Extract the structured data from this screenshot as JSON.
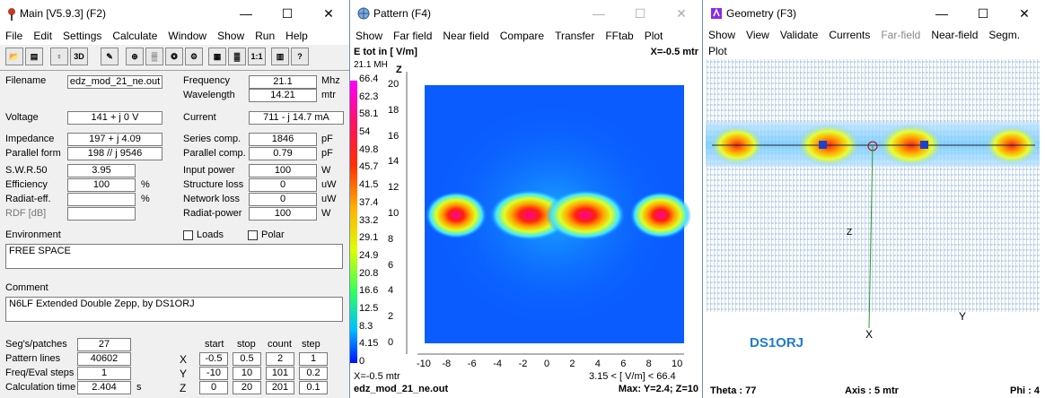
{
  "main": {
    "title": "Main [V5.9.3]   (F2)",
    "menu": [
      "File",
      "Edit",
      "Settings",
      "Calculate",
      "Window",
      "Show",
      "Run",
      "Help"
    ],
    "toolbar_icons": [
      "open-icon",
      "save-icon",
      "antenna-icon",
      "3d-icon",
      "edit-icon",
      "source-icon",
      "ground-icon",
      "pattern-icon",
      "settings-icon",
      "calculator-icon",
      "colors-icon",
      "scale-icon",
      "book-icon",
      "help-icon"
    ],
    "labels": {
      "filename": "Filename",
      "voltage": "Voltage",
      "impedance": "Impedance",
      "parallel_form": "Parallel form",
      "swr": "S.W.R.50",
      "efficiency": "Efficiency",
      "radiat_eff": "Radiat-eff.",
      "rdf": "RDF [dB]",
      "frequency": "Frequency",
      "wavelength": "Wavelength",
      "current": "Current",
      "series_comp": "Series comp.",
      "parallel_comp": "Parallel comp.",
      "input_power": "Input power",
      "structure_loss": "Structure loss",
      "network_loss": "Network loss",
      "radiat_power": "Radiat-power",
      "loads": "Loads",
      "polar": "Polar",
      "environment": "Environment",
      "comment": "Comment",
      "segs": "Seg's/patches",
      "pattern_lines": "Pattern lines",
      "freq_eval": "Freq/Eval steps",
      "calc_time": "Calculation time"
    },
    "units": {
      "mhz": "Mhz",
      "mtr": "mtr",
      "ma": "mA",
      "pf1": "pF",
      "pf2": "pF",
      "w1": "W",
      "uw1": "uW",
      "uw2": "uW",
      "w2": "W",
      "pct1": "%",
      "pct2": "%",
      "s": "s"
    },
    "values": {
      "filename": "edz_mod_21_ne.out",
      "voltage": "141 + j 0 V",
      "impedance": "197 + j 4.09",
      "parallel_form": "198 // j 9546",
      "swr": "3.95",
      "efficiency": "100",
      "radiat_eff": "",
      "rdf": "",
      "frequency": "21.1",
      "wavelength": "14.21",
      "current": "711 - j 14.7 mA",
      "series_comp": "1846",
      "parallel_comp": "0.79",
      "input_power": "100",
      "structure_loss": "0",
      "network_loss": "0",
      "radiat_power": "100",
      "environment": "FREE SPACE",
      "comment": "N6LF Extended Double Zepp, by DS1ORJ",
      "segs": "27",
      "pattern_lines": "40602",
      "freq_eval": "1",
      "calc_time": "2.404"
    },
    "grid": {
      "headers": [
        "start",
        "stop",
        "count",
        "step"
      ],
      "rows": [
        {
          "axis": "X",
          "start": "-0.5",
          "stop": "0.5",
          "count": "2",
          "step": "1"
        },
        {
          "axis": "Y",
          "start": "-10",
          "stop": "10",
          "count": "101",
          "step": "0.2"
        },
        {
          "axis": "Z",
          "start": "0",
          "stop": "20",
          "count": "201",
          "step": "0.1"
        }
      ]
    }
  },
  "pattern": {
    "title": "Pattern   (F4)",
    "menu": [
      "Show",
      "Far field",
      "Near field",
      "Compare",
      "Transfer",
      "FFtab",
      "Plot"
    ],
    "header_left": "E tot in [ V/m]",
    "header_right": "X=-0.5 mtr",
    "freq_label": "21.1 MH",
    "z_axis_label": "Z",
    "scale": [
      "66.4",
      "62.3",
      "58.1",
      "54",
      "49.8",
      "45.7",
      "41.5",
      "37.4",
      "33.2",
      "29.1",
      "24.9",
      "20.8",
      "16.6",
      "12.5",
      "8.3",
      "4.15",
      "0"
    ],
    "y_ticks": [
      "20",
      "18",
      "16",
      "14",
      "12",
      "10",
      "8",
      "6",
      "4",
      "2",
      "0"
    ],
    "x_ticks": [
      "-10",
      "-8",
      "-6",
      "-4",
      "-2",
      "0",
      "2",
      "4",
      "6",
      "8",
      "10"
    ],
    "bottom_left_info": "X=-0.5 mtr",
    "bottom_range": "3.15 < [ V/m] < 66.4",
    "footer_left": "edz_mod_21_ne.out",
    "footer_right": "Max: Y=2.4; Z=10",
    "hotspot_color": "#ff1493",
    "background_color": "#0a5cff"
  },
  "geometry": {
    "title": "Geometry   (F3)",
    "menu": [
      "Show",
      "View",
      "Validate",
      "Currents",
      "Far-field",
      "Near-field",
      "Segm.",
      "Plot"
    ],
    "watermark": "DS1ORJ",
    "axis_x": "X",
    "axis_y": "Y",
    "axis_z": "Z",
    "status": {
      "theta": "Theta : 77",
      "axis": "Axis : 5 mtr",
      "phi": "Phi : 4"
    },
    "accent": "#1e7bd6"
  }
}
